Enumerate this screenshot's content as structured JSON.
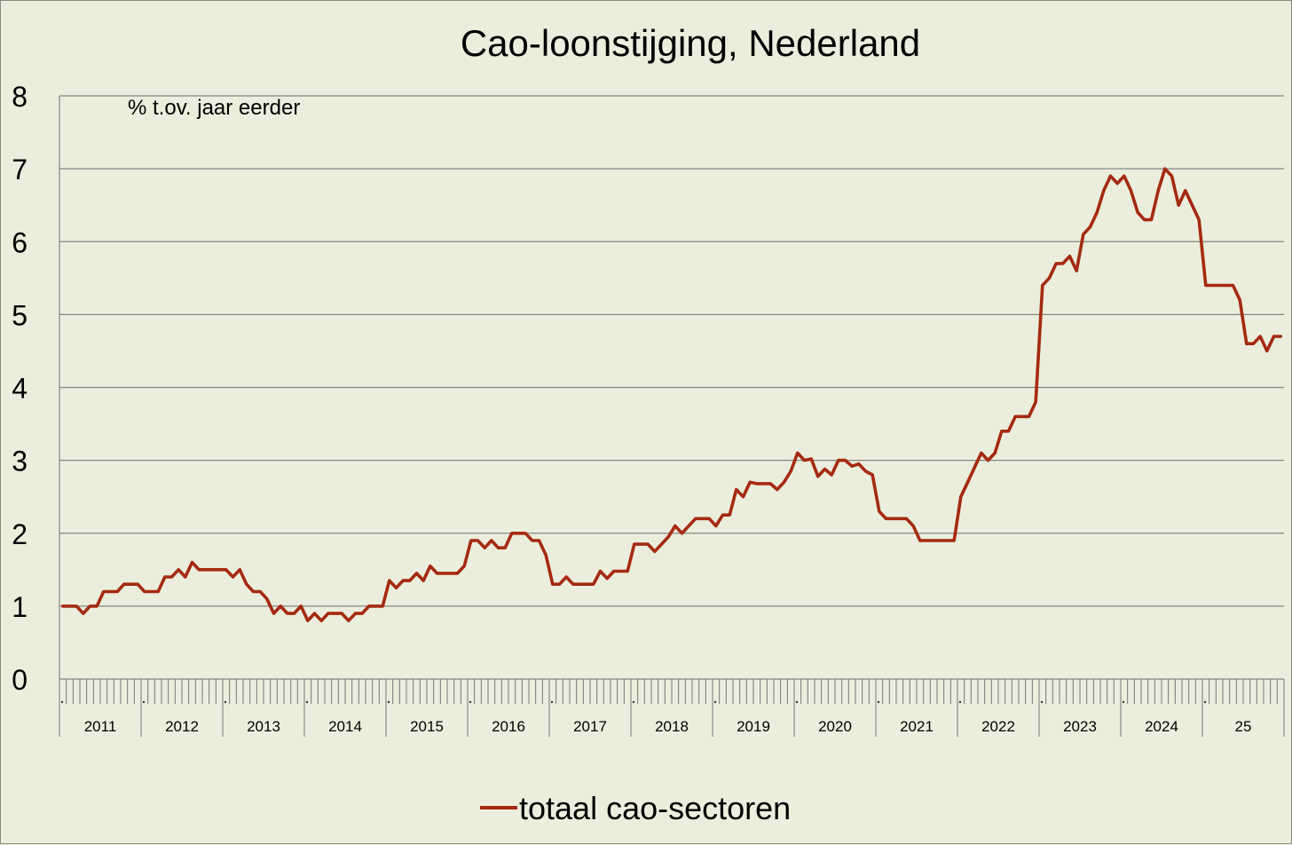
{
  "chart_data": {
    "type": "line",
    "title": "Cao-loonstijging, Nederland",
    "unit_label": "% t.ov. jaar eerder",
    "ylim": [
      0,
      8
    ],
    "y_ticks": [
      "0",
      "1",
      "2",
      "3",
      "4",
      "5",
      "6",
      "7",
      "8"
    ],
    "x_start": "2011-01",
    "x_end": "2026-01",
    "year_labels": [
      "2011",
      "2012",
      "2013",
      "2014",
      "2015",
      "2016",
      "2017",
      "2018",
      "2019",
      "2020",
      "2021",
      "2022",
      "2023",
      "2024",
      "25"
    ],
    "grid": true,
    "legend_position": "bottom",
    "series": [
      {
        "name": "totaal cao-sectoren",
        "color": "#a52a12",
        "x": [
          "2011-01",
          "2011-02",
          "2011-03",
          "2011-04",
          "2011-05",
          "2011-06",
          "2011-07",
          "2011-08",
          "2011-09",
          "2011-10",
          "2011-11",
          "2011-12",
          "2012-01",
          "2012-02",
          "2012-03",
          "2012-04",
          "2012-05",
          "2012-06",
          "2012-07",
          "2012-08",
          "2012-09",
          "2012-10",
          "2012-11",
          "2012-12",
          "2013-01",
          "2013-02",
          "2013-03",
          "2013-04",
          "2013-05",
          "2013-06",
          "2013-07",
          "2013-08",
          "2013-09",
          "2013-10",
          "2013-11",
          "2013-12",
          "2014-01",
          "2014-02",
          "2014-03",
          "2014-04",
          "2014-05",
          "2014-06",
          "2014-07",
          "2014-08",
          "2014-09",
          "2014-10",
          "2014-11",
          "2014-12",
          "2015-01",
          "2015-02",
          "2015-03",
          "2015-04",
          "2015-05",
          "2015-06",
          "2015-07",
          "2015-08",
          "2015-09",
          "2015-10",
          "2015-11",
          "2015-12",
          "2016-01",
          "2016-02",
          "2016-03",
          "2016-04",
          "2016-05",
          "2016-06",
          "2016-07",
          "2016-08",
          "2016-09",
          "2016-10",
          "2016-11",
          "2016-12",
          "2017-01",
          "2017-02",
          "2017-03",
          "2017-04",
          "2017-05",
          "2017-06",
          "2017-07",
          "2017-08",
          "2017-09",
          "2017-10",
          "2017-11",
          "2017-12",
          "2018-01",
          "2018-02",
          "2018-03",
          "2018-04",
          "2018-05",
          "2018-06",
          "2018-07",
          "2018-08",
          "2018-09",
          "2018-10",
          "2018-11",
          "2018-12",
          "2019-01",
          "2019-02",
          "2019-03",
          "2019-04",
          "2019-05",
          "2019-06",
          "2019-07",
          "2019-08",
          "2019-09",
          "2019-10",
          "2019-11",
          "2019-12",
          "2020-01",
          "2020-02",
          "2020-03",
          "2020-04",
          "2020-05",
          "2020-06",
          "2020-07",
          "2020-08",
          "2020-09",
          "2020-10",
          "2020-11",
          "2020-12",
          "2021-01",
          "2021-02",
          "2021-03",
          "2021-04",
          "2021-05",
          "2021-06",
          "2021-07",
          "2021-08",
          "2021-09",
          "2021-10",
          "2021-11",
          "2021-12",
          "2022-01",
          "2022-02",
          "2022-03",
          "2022-04",
          "2022-05",
          "2022-06",
          "2022-07",
          "2022-08",
          "2022-09",
          "2022-10",
          "2022-11",
          "2022-12",
          "2023-01",
          "2023-02",
          "2023-03",
          "2023-04",
          "2023-05",
          "2023-06",
          "2023-07",
          "2023-08",
          "2023-09",
          "2023-10",
          "2023-11",
          "2023-12",
          "2024-01",
          "2024-02",
          "2024-03",
          "2024-04",
          "2024-05",
          "2024-06",
          "2024-07",
          "2024-08",
          "2024-09",
          "2024-10",
          "2024-11",
          "2024-12",
          "2025-01",
          "2025-02",
          "2025-03",
          "2025-04",
          "2025-05",
          "2025-06",
          "2025-07",
          "2025-08",
          "2025-09",
          "2025-10",
          "2025-11",
          "2025-12"
        ],
        "values": [
          1.0,
          1.0,
          1.0,
          0.9,
          1.0,
          1.0,
          1.2,
          1.2,
          1.2,
          1.3,
          1.3,
          1.3,
          1.2,
          1.2,
          1.2,
          1.4,
          1.4,
          1.5,
          1.4,
          1.6,
          1.5,
          1.5,
          1.5,
          1.5,
          1.5,
          1.4,
          1.5,
          1.3,
          1.2,
          1.2,
          1.1,
          0.9,
          1.0,
          0.9,
          0.9,
          1.0,
          0.8,
          0.9,
          0.8,
          0.9,
          0.9,
          0.9,
          0.8,
          0.9,
          0.9,
          1.0,
          1.0,
          1.0,
          1.35,
          1.25,
          1.35,
          1.35,
          1.45,
          1.35,
          1.55,
          1.45,
          1.45,
          1.45,
          1.45,
          1.55,
          1.9,
          1.9,
          1.8,
          1.9,
          1.8,
          1.8,
          2.0,
          2.0,
          2.0,
          1.9,
          1.9,
          1.7,
          1.3,
          1.3,
          1.4,
          1.3,
          1.3,
          1.3,
          1.3,
          1.48,
          1.38,
          1.48,
          1.48,
          1.48,
          1.85,
          1.85,
          1.85,
          1.75,
          1.85,
          1.95,
          2.1,
          2.0,
          2.1,
          2.2,
          2.2,
          2.2,
          2.1,
          2.25,
          2.25,
          2.6,
          2.5,
          2.7,
          2.68,
          2.68,
          2.68,
          2.6,
          2.7,
          2.85,
          3.1,
          3.0,
          3.02,
          2.78,
          2.88,
          2.8,
          3.0,
          3.0,
          2.92,
          2.95,
          2.85,
          2.8,
          2.3,
          2.2,
          2.2,
          2.2,
          2.2,
          2.1,
          1.9,
          1.9,
          1.9,
          1.9,
          1.9,
          1.9,
          2.5,
          2.7,
          2.9,
          3.1,
          3.0,
          3.1,
          3.4,
          3.4,
          3.6,
          3.6,
          3.6,
          3.8,
          5.4,
          5.5,
          5.7,
          5.7,
          5.8,
          5.6,
          6.1,
          6.2,
          6.4,
          6.7,
          6.9,
          6.8,
          6.9,
          6.7,
          6.4,
          6.3,
          6.3,
          6.7,
          7.0,
          6.9,
          6.5,
          6.7,
          6.5,
          6.3,
          5.4,
          5.4,
          5.4,
          5.4,
          5.4,
          5.2,
          4.6,
          4.6,
          4.7,
          4.5,
          4.7,
          4.7
        ]
      }
    ]
  }
}
